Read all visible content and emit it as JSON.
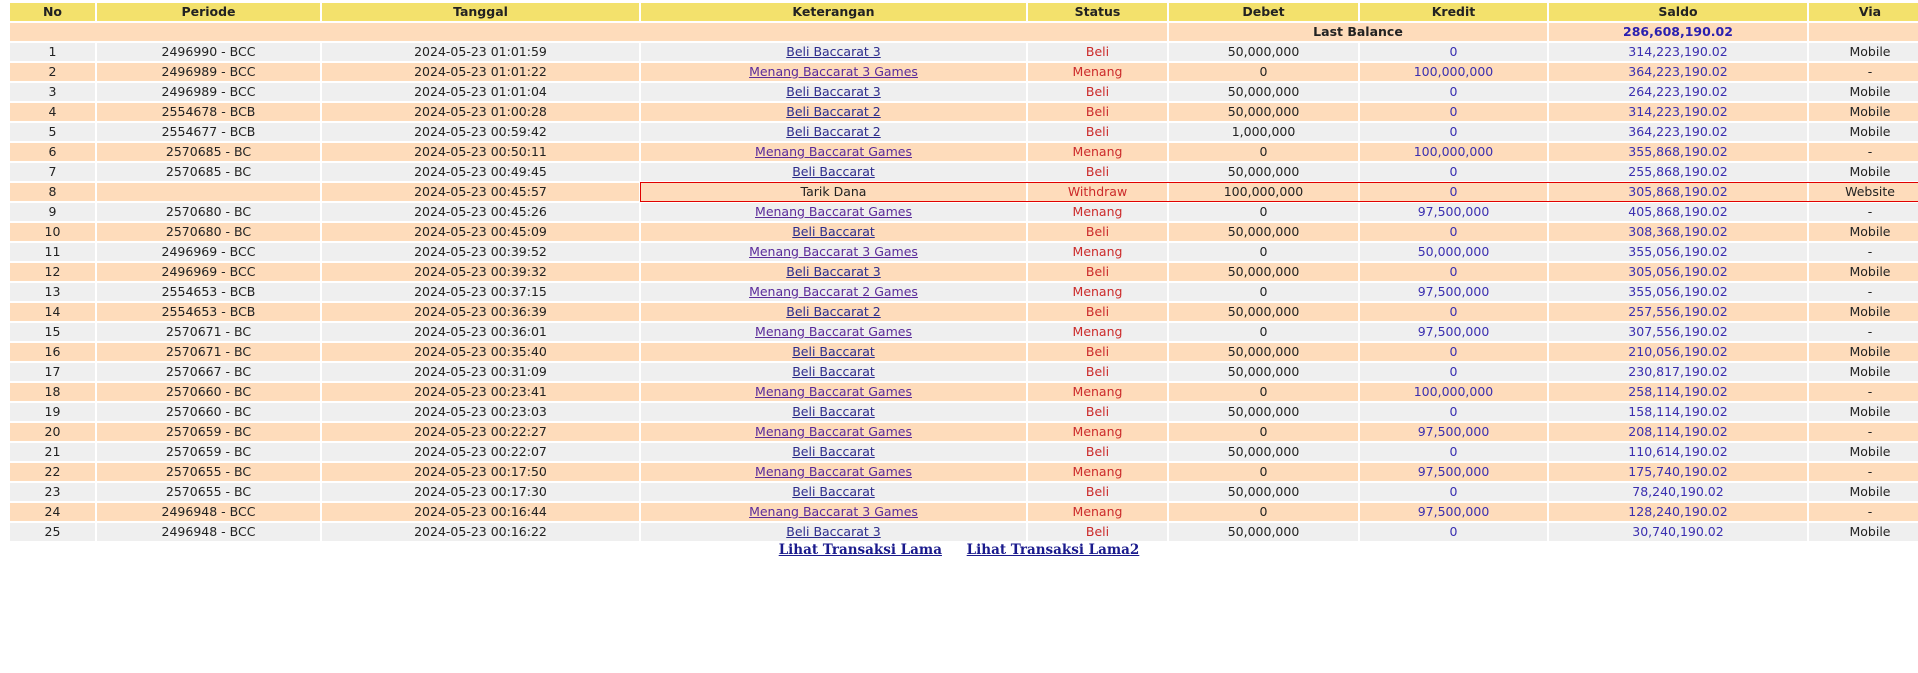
{
  "columns": [
    "No",
    "Periode",
    "Tanggal",
    "Keterangan",
    "Status",
    "Debet",
    "Kredit",
    "Saldo",
    "Via"
  ],
  "last_balance": {
    "label": "Last Balance",
    "value": "286,608,190.02"
  },
  "highlighted_row": 8,
  "colors": {
    "header": "#f3e16c",
    "row_odd": "#efefef",
    "row_even": "#fedcbb",
    "status": "#cc2a2a",
    "amount": "#3a2fb0",
    "highlight": "#e00000"
  },
  "rows": [
    {
      "no": "1",
      "periode": "2496990 - BCC",
      "tanggal": "2024-05-23 01:01:59",
      "ket": "Beli Baccarat 3",
      "status": "Beli",
      "debet": "50,000,000",
      "kredit": "0",
      "saldo": "314,223,190.02",
      "via": "Mobile"
    },
    {
      "no": "2",
      "periode": "2496989 - BCC",
      "tanggal": "2024-05-23 01:01:22",
      "ket": "Menang Baccarat 3 Games",
      "status": "Menang",
      "debet": "0",
      "kredit": "100,000,000",
      "saldo": "364,223,190.02",
      "via": "-"
    },
    {
      "no": "3",
      "periode": "2496989 - BCC",
      "tanggal": "2024-05-23 01:01:04",
      "ket": "Beli Baccarat 3",
      "status": "Beli",
      "debet": "50,000,000",
      "kredit": "0",
      "saldo": "264,223,190.02",
      "via": "Mobile"
    },
    {
      "no": "4",
      "periode": "2554678 - BCB",
      "tanggal": "2024-05-23 01:00:28",
      "ket": "Beli Baccarat 2",
      "status": "Beli",
      "debet": "50,000,000",
      "kredit": "0",
      "saldo": "314,223,190.02",
      "via": "Mobile"
    },
    {
      "no": "5",
      "periode": "2554677 - BCB",
      "tanggal": "2024-05-23 00:59:42",
      "ket": "Beli Baccarat 2",
      "status": "Beli",
      "debet": "1,000,000",
      "kredit": "0",
      "saldo": "364,223,190.02",
      "via": "Mobile"
    },
    {
      "no": "6",
      "periode": "2570685 - BC",
      "tanggal": "2024-05-23 00:50:11",
      "ket": "Menang Baccarat Games",
      "status": "Menang",
      "debet": "0",
      "kredit": "100,000,000",
      "saldo": "355,868,190.02",
      "via": "-"
    },
    {
      "no": "7",
      "periode": "2570685 - BC",
      "tanggal": "2024-05-23 00:49:45",
      "ket": "Beli Baccarat",
      "status": "Beli",
      "debet": "50,000,000",
      "kredit": "0",
      "saldo": "255,868,190.02",
      "via": "Mobile"
    },
    {
      "no": "8",
      "periode": "",
      "tanggal": "2024-05-23 00:45:57",
      "ket": "Tarik Dana",
      "status": "Withdraw",
      "debet": "100,000,000",
      "kredit": "0",
      "saldo": "305,868,190.02",
      "via": "Website"
    },
    {
      "no": "9",
      "periode": "2570680 - BC",
      "tanggal": "2024-05-23 00:45:26",
      "ket": "Menang Baccarat Games",
      "status": "Menang",
      "debet": "0",
      "kredit": "97,500,000",
      "saldo": "405,868,190.02",
      "via": "-"
    },
    {
      "no": "10",
      "periode": "2570680 - BC",
      "tanggal": "2024-05-23 00:45:09",
      "ket": "Beli Baccarat",
      "status": "Beli",
      "debet": "50,000,000",
      "kredit": "0",
      "saldo": "308,368,190.02",
      "via": "Mobile"
    },
    {
      "no": "11",
      "periode": "2496969 - BCC",
      "tanggal": "2024-05-23 00:39:52",
      "ket": "Menang Baccarat 3 Games",
      "status": "Menang",
      "debet": "0",
      "kredit": "50,000,000",
      "saldo": "355,056,190.02",
      "via": "-"
    },
    {
      "no": "12",
      "periode": "2496969 - BCC",
      "tanggal": "2024-05-23 00:39:32",
      "ket": "Beli Baccarat 3",
      "status": "Beli",
      "debet": "50,000,000",
      "kredit": "0",
      "saldo": "305,056,190.02",
      "via": "Mobile"
    },
    {
      "no": "13",
      "periode": "2554653 - BCB",
      "tanggal": "2024-05-23 00:37:15",
      "ket": "Menang Baccarat 2 Games",
      "status": "Menang",
      "debet": "0",
      "kredit": "97,500,000",
      "saldo": "355,056,190.02",
      "via": "-"
    },
    {
      "no": "14",
      "periode": "2554653 - BCB",
      "tanggal": "2024-05-23 00:36:39",
      "ket": "Beli Baccarat 2",
      "status": "Beli",
      "debet": "50,000,000",
      "kredit": "0",
      "saldo": "257,556,190.02",
      "via": "Mobile"
    },
    {
      "no": "15",
      "periode": "2570671 - BC",
      "tanggal": "2024-05-23 00:36:01",
      "ket": "Menang Baccarat Games",
      "status": "Menang",
      "debet": "0",
      "kredit": "97,500,000",
      "saldo": "307,556,190.02",
      "via": "-"
    },
    {
      "no": "16",
      "periode": "2570671 - BC",
      "tanggal": "2024-05-23 00:35:40",
      "ket": "Beli Baccarat",
      "status": "Beli",
      "debet": "50,000,000",
      "kredit": "0",
      "saldo": "210,056,190.02",
      "via": "Mobile"
    },
    {
      "no": "17",
      "periode": "2570667 - BC",
      "tanggal": "2024-05-23 00:31:09",
      "ket": "Beli Baccarat",
      "status": "Beli",
      "debet": "50,000,000",
      "kredit": "0",
      "saldo": "230,817,190.02",
      "via": "Mobile"
    },
    {
      "no": "18",
      "periode": "2570660 - BC",
      "tanggal": "2024-05-23 00:23:41",
      "ket": "Menang Baccarat Games",
      "status": "Menang",
      "debet": "0",
      "kredit": "100,000,000",
      "saldo": "258,114,190.02",
      "via": "-"
    },
    {
      "no": "19",
      "periode": "2570660 - BC",
      "tanggal": "2024-05-23 00:23:03",
      "ket": "Beli Baccarat",
      "status": "Beli",
      "debet": "50,000,000",
      "kredit": "0",
      "saldo": "158,114,190.02",
      "via": "Mobile"
    },
    {
      "no": "20",
      "periode": "2570659 - BC",
      "tanggal": "2024-05-23 00:22:27",
      "ket": "Menang Baccarat Games",
      "status": "Menang",
      "debet": "0",
      "kredit": "97,500,000",
      "saldo": "208,114,190.02",
      "via": "-"
    },
    {
      "no": "21",
      "periode": "2570659 - BC",
      "tanggal": "2024-05-23 00:22:07",
      "ket": "Beli Baccarat",
      "status": "Beli",
      "debet": "50,000,000",
      "kredit": "0",
      "saldo": "110,614,190.02",
      "via": "Mobile"
    },
    {
      "no": "22",
      "periode": "2570655 - BC",
      "tanggal": "2024-05-23 00:17:50",
      "ket": "Menang Baccarat Games",
      "status": "Menang",
      "debet": "0",
      "kredit": "97,500,000",
      "saldo": "175,740,190.02",
      "via": "-"
    },
    {
      "no": "23",
      "periode": "2570655 - BC",
      "tanggal": "2024-05-23 00:17:30",
      "ket": "Beli Baccarat",
      "status": "Beli",
      "debet": "50,000,000",
      "kredit": "0",
      "saldo": "78,240,190.02",
      "via": "Mobile"
    },
    {
      "no": "24",
      "periode": "2496948 - BCC",
      "tanggal": "2024-05-23 00:16:44",
      "ket": "Menang Baccarat 3 Games",
      "status": "Menang",
      "debet": "0",
      "kredit": "97,500,000",
      "saldo": "128,240,190.02",
      "via": "-"
    },
    {
      "no": "25",
      "periode": "2496948 - BCC",
      "tanggal": "2024-05-23 00:16:22",
      "ket": "Beli Baccarat 3",
      "status": "Beli",
      "debet": "50,000,000",
      "kredit": "0",
      "saldo": "30,740,190.02",
      "via": "Mobile"
    }
  ],
  "footer_links": [
    "Lihat Transaksi Lama",
    "Lihat Transaksi Lama2"
  ]
}
